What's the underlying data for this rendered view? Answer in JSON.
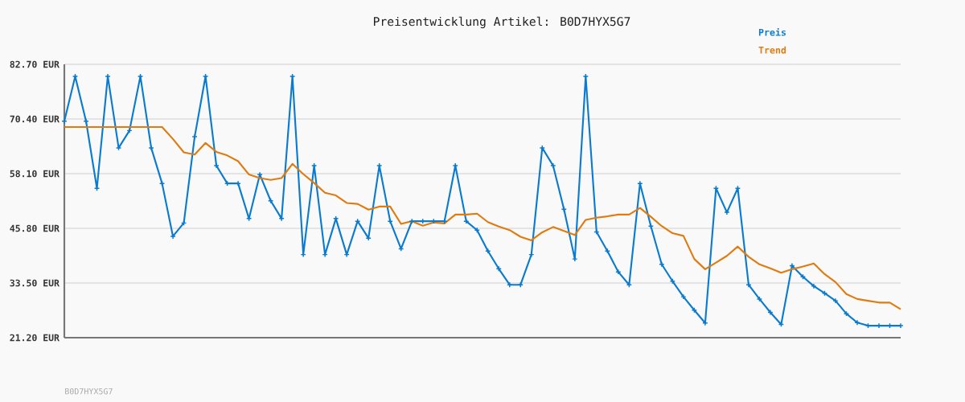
{
  "chart_data": {
    "type": "line",
    "title": "Preisentwicklung Artikel: B0D7HYX5G7",
    "categories": [
      null,
      null,
      null,
      null,
      null,
      null,
      null,
      null,
      null,
      null,
      null,
      null,
      null,
      null,
      null,
      null,
      null,
      null,
      null,
      null,
      null,
      null,
      null,
      null,
      null,
      null,
      null,
      null,
      null,
      null,
      null,
      null,
      null,
      null,
      null,
      null,
      null,
      null,
      null,
      null,
      null,
      null,
      null,
      null,
      null,
      null,
      null,
      null,
      null,
      null,
      null,
      null,
      null,
      null,
      null,
      null,
      null,
      null,
      null,
      null,
      null,
      null,
      null,
      null,
      null,
      null,
      null,
      null,
      null,
      null,
      null,
      null,
      null,
      null,
      null,
      null,
      null,
      null
    ],
    "series": [
      {
        "name": "Preis",
        "color": "#0a7bcf",
        "values": [
          69.9,
          80.0,
          69.9,
          54.8,
          80.0,
          63.9,
          67.8,
          80.0,
          63.9,
          55.9,
          44.0,
          47.0,
          66.4,
          80.0,
          59.9,
          55.9,
          55.9,
          48.0,
          57.9,
          52.0,
          48.0,
          80.0,
          39.9,
          59.9,
          39.9,
          48.0,
          39.9,
          47.4,
          43.6,
          59.9,
          47.4,
          41.2,
          47.4,
          47.4,
          47.4,
          47.4,
          59.9,
          47.4,
          45.4,
          40.7,
          36.7,
          33.1,
          33.1,
          39.9,
          63.9,
          59.9,
          50.1,
          38.9,
          80.0,
          45.0,
          40.7,
          36.0,
          33.1,
          55.9,
          46.3,
          37.7,
          33.9,
          30.4,
          27.4,
          24.5,
          54.8,
          49.4,
          54.8,
          33.1,
          29.9,
          26.9,
          24.2,
          37.4,
          34.9,
          32.8,
          31.2,
          29.5,
          26.6,
          24.6,
          23.9,
          23.9,
          23.9,
          23.9
        ]
      },
      {
        "name": "Trend",
        "color": "#e07b0f",
        "marker": "none",
        "values": [
          68.6,
          68.6,
          68.6,
          68.6,
          68.6,
          68.6,
          68.6,
          68.6,
          68.6,
          68.6,
          65.9,
          62.9,
          62.4,
          65.0,
          63.0,
          62.2,
          60.9,
          57.9,
          57.1,
          56.7,
          57.1,
          60.3,
          58.0,
          56.0,
          53.8,
          53.2,
          51.5,
          51.3,
          50.0,
          50.7,
          50.7,
          46.8,
          47.4,
          46.4,
          47.1,
          46.9,
          48.9,
          48.9,
          49.1,
          47.2,
          46.2,
          45.4,
          43.9,
          43.1,
          44.9,
          46.1,
          45.2,
          44.3,
          47.7,
          48.2,
          48.5,
          48.9,
          48.9,
          50.4,
          48.4,
          46.3,
          44.7,
          44.1,
          38.9,
          36.6,
          38.1,
          39.6,
          41.7,
          39.4,
          37.7,
          36.8,
          35.8,
          36.6,
          37.2,
          37.9,
          35.5,
          33.7,
          31.0,
          29.9,
          29.5,
          29.1,
          29.1,
          27.6
        ]
      }
    ],
    "ylim": [
      21.2,
      82.7
    ],
    "yticks": [
      {
        "value": 21.2,
        "label": "21.20 EUR"
      },
      {
        "value": 33.5,
        "label": "33.50 EUR"
      },
      {
        "value": 45.8,
        "label": "45.80 EUR"
      },
      {
        "value": 58.1,
        "label": "58.10 EUR"
      },
      {
        "value": 70.4,
        "label": "70.40 EUR"
      },
      {
        "value": 82.7,
        "label": "82.70 EUR"
      }
    ],
    "grid": "y",
    "legend": "top right",
    "marker": "cross",
    "line_style": "solid",
    "annotations": [
      "B0D7HYX5G7"
    ]
  }
}
